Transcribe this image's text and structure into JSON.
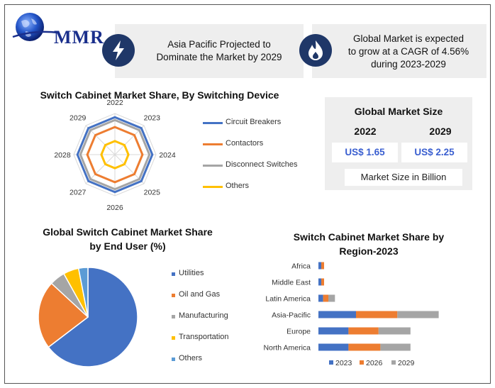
{
  "brand": {
    "logo_text": "MMR"
  },
  "info_cards": [
    {
      "icon": "lightning-icon",
      "text_line1": "Asia Pacific Projected to",
      "text_line2": "Dominate the Market by 2029"
    },
    {
      "icon": "flame-icon",
      "text_line1": "Global Market is expected",
      "text_line2": "to grow at a CAGR of 4.56%",
      "text_line3": "during 2023-2029"
    }
  ],
  "market_size": {
    "title": "Global Market Size",
    "year1": "2022",
    "year2": "2029",
    "value1": "US$ 1.65",
    "value2": "US$ 2.25",
    "note": "Market Size in Billion"
  },
  "colors": {
    "blue": "#4472c4",
    "orange": "#ed7d31",
    "gray": "#a5a5a5",
    "yellow": "#ffc000",
    "lightblue": "#5b9bd5",
    "navy": "#1f3768"
  },
  "chart_data": [
    {
      "type": "radar",
      "title": "Switch Cabinet Market Share, By Switching Device",
      "categories": [
        "2022",
        "2023",
        "2024",
        "2025",
        "2026",
        "2027",
        "2028",
        "2029"
      ],
      "series": [
        {
          "name": "Circuit Breakers",
          "values": [
            91,
            91,
            91,
            91,
            91,
            91,
            91,
            91
          ]
        },
        {
          "name": "Contactors",
          "values": [
            67,
            67,
            67,
            67,
            67,
            67,
            67,
            67
          ]
        },
        {
          "name": "Disconnect Switches",
          "values": [
            84,
            84,
            84,
            84,
            84,
            84,
            84,
            84
          ]
        },
        {
          "name": "Others",
          "values": [
            33,
            33,
            33,
            33,
            33,
            33,
            33,
            33
          ]
        }
      ],
      "rmax": 100,
      "legend": "right"
    },
    {
      "type": "pie",
      "title_line1": "Global Switch Cabinet Market Share",
      "title_line2": "by End User (%)",
      "labels": [
        "Utilities",
        "Oil and Gas",
        "Manufacturing",
        "Transportation",
        "Others"
      ],
      "values": [
        64,
        22,
        5,
        5,
        3
      ],
      "legend": "right"
    },
    {
      "type": "bar",
      "orientation": "horizontal",
      "stacked": true,
      "title_line1": "Switch Cabinet Market Share by",
      "title_line2": "Region-2023",
      "categories": [
        "Africa",
        "Middle East",
        "Latin America",
        "Asia-Pacific",
        "Europe",
        "North America"
      ],
      "series": [
        {
          "name": "2023",
          "values": [
            1.5,
            1.5,
            2.5,
            20,
            16,
            16
          ]
        },
        {
          "name": "2026",
          "values": [
            1.5,
            1.5,
            2.8,
            22,
            16,
            17
          ]
        },
        {
          "name": "2029",
          "values": [
            0,
            0,
            3.5,
            22,
            17,
            16
          ]
        }
      ],
      "legend": "bottom"
    }
  ]
}
